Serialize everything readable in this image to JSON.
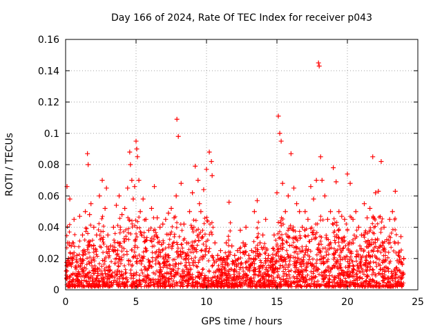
{
  "chart_data": {
    "type": "scatter",
    "title": "Day 166 of 2024, Rate Of TEC Index for receiver p043",
    "xlabel": "GPS time / hours",
    "ylabel": "ROTI / TECUs",
    "xlim": [
      0,
      25
    ],
    "ylim": [
      0,
      0.16
    ],
    "xticks": [
      0,
      5,
      10,
      15,
      20,
      25
    ],
    "yticks": [
      0,
      0.02,
      0.04,
      0.06,
      0.08,
      0.1,
      0.12,
      0.14,
      0.16
    ],
    "xtick_labels": [
      "0",
      "5",
      "10",
      "15",
      "20",
      "25"
    ],
    "ytick_labels": [
      "0",
      "0.02",
      "0.04",
      "0.06",
      "0.08",
      "0.1",
      "0.12",
      "0.14",
      "0.16"
    ],
    "grid": true,
    "marker": "+",
    "marker_color": "#ff0000",
    "series": [
      {
        "x": [
          0.05,
          0.1,
          0.15,
          0.2,
          0.3,
          0.4,
          0.5,
          0.6,
          0.8,
          1.0,
          1.2,
          1.4,
          1.55,
          1.6,
          1.7,
          1.8,
          2.0,
          2.2,
          2.4,
          2.6,
          2.8,
          2.9,
          3.0,
          3.2,
          3.4,
          3.6,
          3.8,
          4.0,
          4.2,
          4.4,
          4.55,
          4.6,
          4.7,
          4.8,
          4.9,
          5.0,
          5.05,
          5.1,
          5.2,
          5.3,
          5.5,
          5.7,
          5.9,
          6.1,
          6.3,
          6.5,
          6.7,
          6.9,
          7.1,
          7.3,
          7.5,
          7.7,
          7.85,
          7.9,
          8.0,
          8.2,
          8.4,
          8.6,
          8.8,
          9.0,
          9.2,
          9.4,
          9.5,
          9.6,
          9.8,
          10.0,
          10.2,
          10.35,
          10.4,
          10.6,
          10.8,
          11.0,
          11.2,
          11.4,
          11.6,
          11.8,
          12.0,
          12.2,
          12.4,
          12.6,
          12.8,
          13.0,
          13.2,
          13.4,
          13.6,
          13.8,
          14.0,
          14.2,
          14.4,
          14.6,
          14.8,
          15.0,
          15.1,
          15.2,
          15.3,
          15.4,
          15.6,
          15.8,
          16.0,
          16.2,
          16.4,
          16.6,
          16.8,
          17.0,
          17.2,
          17.4,
          17.6,
          17.8,
          17.95,
          18.0,
          18.1,
          18.2,
          18.4,
          18.6,
          18.8,
          19.0,
          19.2,
          19.4,
          19.6,
          19.8,
          20.0,
          20.2,
          20.4,
          20.6,
          20.8,
          21.0,
          21.2,
          21.4,
          21.6,
          21.8,
          22.0,
          22.2,
          22.4,
          22.6,
          22.8,
          23.0,
          23.2,
          23.4,
          23.6,
          23.8,
          24.0
        ],
        "y": [
          0.012,
          0.066,
          0.03,
          0.02,
          0.058,
          0.028,
          0.03,
          0.045,
          0.022,
          0.047,
          0.035,
          0.05,
          0.087,
          0.08,
          0.048,
          0.055,
          0.04,
          0.035,
          0.06,
          0.07,
          0.052,
          0.065,
          0.035,
          0.028,
          0.04,
          0.054,
          0.06,
          0.048,
          0.052,
          0.065,
          0.088,
          0.08,
          0.07,
          0.058,
          0.066,
          0.095,
          0.09,
          0.085,
          0.07,
          0.05,
          0.058,
          0.045,
          0.038,
          0.052,
          0.066,
          0.046,
          0.04,
          0.042,
          0.045,
          0.049,
          0.052,
          0.046,
          0.06,
          0.109,
          0.098,
          0.068,
          0.042,
          0.03,
          0.05,
          0.062,
          0.079,
          0.07,
          0.055,
          0.05,
          0.064,
          0.077,
          0.088,
          0.082,
          0.073,
          0.03,
          0.022,
          0.025,
          0.02,
          0.03,
          0.056,
          0.028,
          0.022,
          0.025,
          0.038,
          0.03,
          0.04,
          0.022,
          0.025,
          0.05,
          0.057,
          0.03,
          0.035,
          0.045,
          0.022,
          0.02,
          0.035,
          0.062,
          0.111,
          0.1,
          0.095,
          0.068,
          0.05,
          0.06,
          0.087,
          0.065,
          0.055,
          0.05,
          0.04,
          0.05,
          0.045,
          0.066,
          0.058,
          0.07,
          0.145,
          0.143,
          0.085,
          0.07,
          0.06,
          0.045,
          0.05,
          0.078,
          0.069,
          0.05,
          0.047,
          0.045,
          0.074,
          0.068,
          0.045,
          0.05,
          0.04,
          0.035,
          0.055,
          0.046,
          0.052,
          0.085,
          0.062,
          0.063,
          0.082,
          0.04,
          0.032,
          0.045,
          0.05,
          0.063,
          0.03,
          0.034,
          0.02
        ]
      }
    ]
  }
}
